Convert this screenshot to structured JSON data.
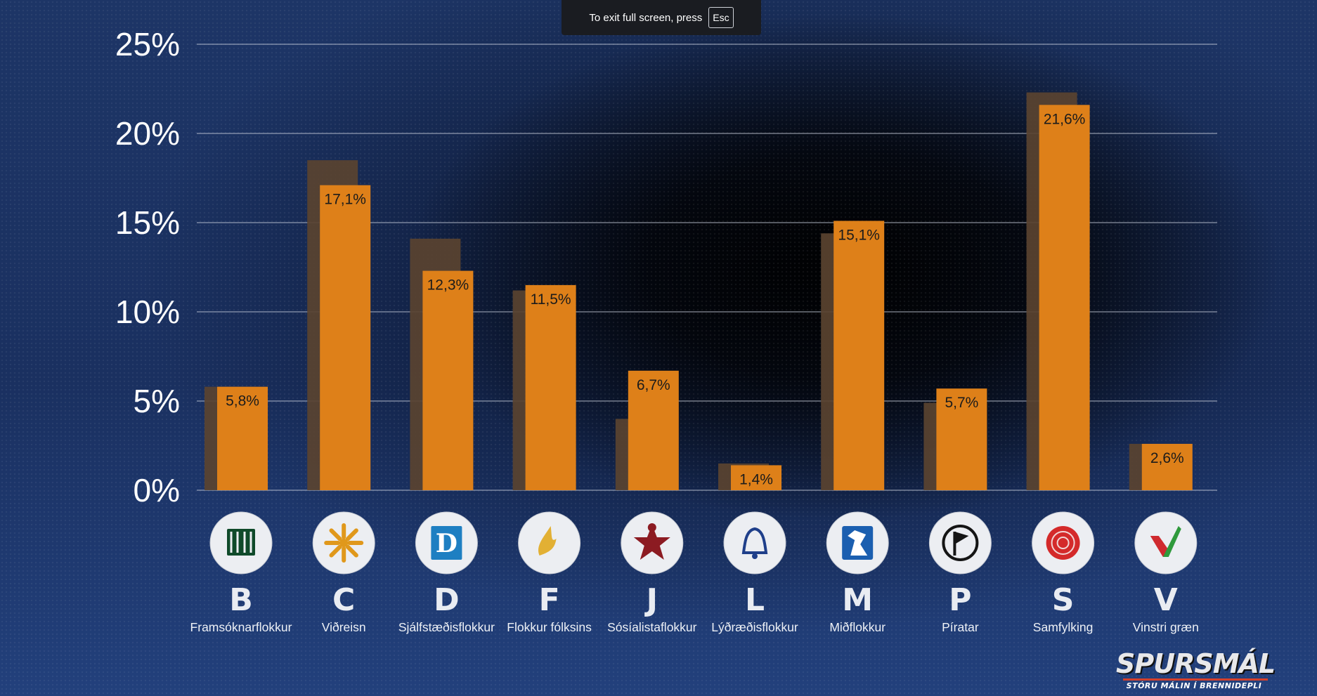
{
  "fullscreen_notice": {
    "text": "To exit full screen, press",
    "key": "Esc"
  },
  "brand": {
    "name": "SPURSMÁL",
    "tagline": "STÓRU MÁLIN Í BRENNIDEPLI"
  },
  "colors": {
    "bar": "#de8019",
    "previous_bar": "#5a4330",
    "gridline": "#c9cfdc",
    "logo_circle": "#eceef2"
  },
  "chart_data": {
    "type": "bar",
    "ylim": [
      0,
      25
    ],
    "yticks": [
      0,
      5,
      10,
      15,
      20,
      25
    ],
    "ytick_labels": [
      "0%",
      "5%",
      "10%",
      "15%",
      "20%",
      "25%"
    ],
    "grid": true,
    "categories": [
      "B",
      "C",
      "D",
      "F",
      "J",
      "L",
      "M",
      "P",
      "S",
      "V"
    ],
    "party_names": [
      "Framsóknarflokkur",
      "Viðreisn",
      "Sjálfstæðisflokkur",
      "Flokkur fólksins",
      "Sósíalistaflokkur",
      "Lýðræðisflokkur",
      "Miðflokkur",
      "Píratar",
      "Samfylking",
      "Vinstri græn"
    ],
    "party_logo_icons": [
      "book-icon",
      "sun-icon",
      "d-letter-icon",
      "hand-icon",
      "star-icon",
      "bell-icon",
      "horse-icon",
      "pirate-flag-icon",
      "rose-icon",
      "check-icon"
    ],
    "series": [
      {
        "values": [
          5.8,
          18.5,
          14.1,
          11.2,
          4.0,
          1.5,
          14.4,
          4.9,
          22.3,
          2.6
        ]
      },
      {
        "values": [
          5.8,
          17.1,
          12.3,
          11.5,
          6.7,
          1.4,
          15.1,
          5.7,
          21.6,
          2.6
        ]
      }
    ],
    "data_labels": [
      "5,8%",
      "17,1%",
      "12,3%",
      "11,5%",
      "6,7%",
      "1,4%",
      "15,1%",
      "5,7%",
      "21,6%",
      "2,6%"
    ]
  }
}
